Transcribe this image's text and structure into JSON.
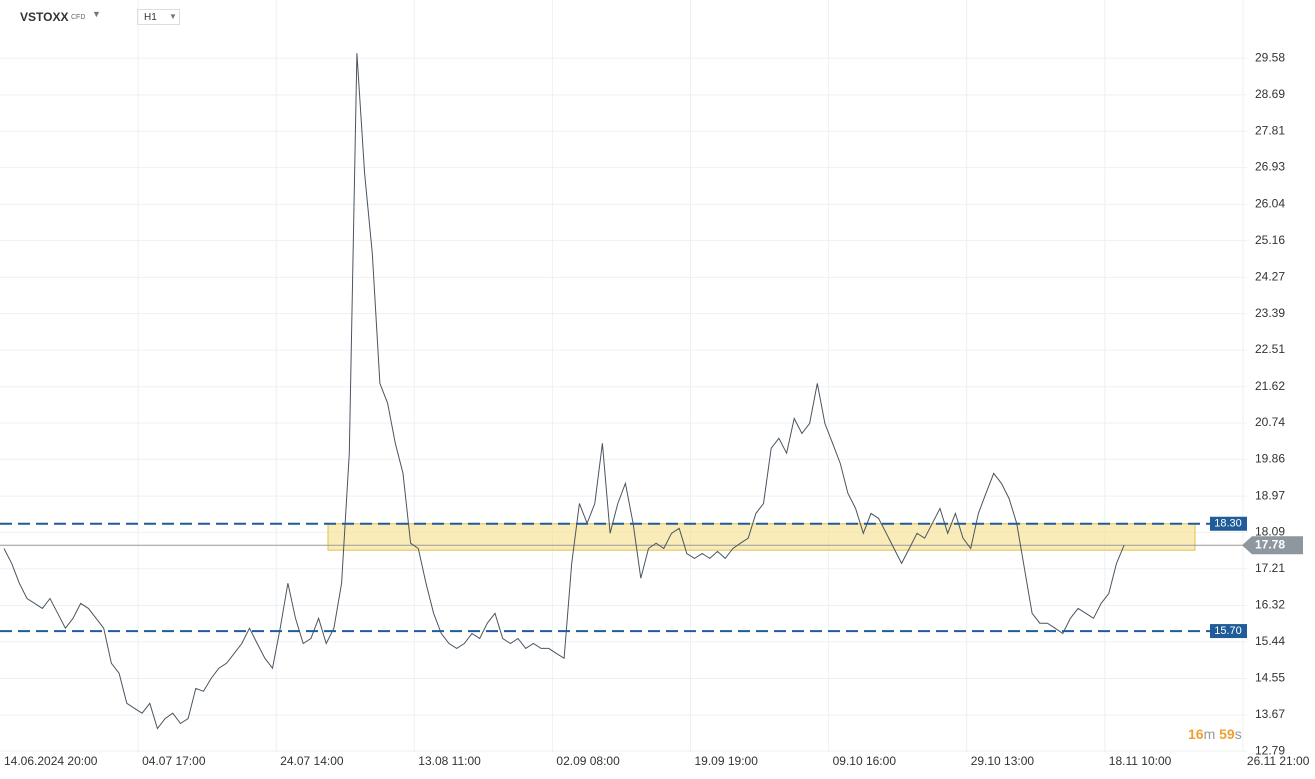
{
  "header": {
    "symbol": "VSTOXX",
    "instrument": "CFD",
    "timeframe": "H1"
  },
  "timer": [
    "16",
    "m",
    "59",
    "s"
  ],
  "chart_data": {
    "type": "line",
    "color": "#4a5560",
    "categories": [
      "14.06.2024 20:00",
      null,
      null,
      null,
      null,
      null,
      null,
      null,
      null,
      null,
      null,
      null,
      null,
      null,
      null,
      null,
      null,
      null,
      "04.07 17:00",
      null,
      null,
      null,
      null,
      null,
      null,
      null,
      null,
      null,
      null,
      null,
      null,
      null,
      null,
      null,
      null,
      null,
      "24.07 14:00",
      null,
      null,
      null,
      null,
      null,
      null,
      null,
      null,
      null,
      null,
      null,
      null,
      null,
      null,
      null,
      null,
      null,
      "13.08 11:00",
      null,
      null,
      null,
      null,
      null,
      null,
      null,
      null,
      null,
      null,
      null,
      null,
      null,
      null,
      null,
      null,
      null,
      "02.09 08:00",
      null,
      null,
      null,
      null,
      null,
      null,
      null,
      null,
      null,
      null,
      null,
      null,
      null,
      null,
      null,
      null,
      null,
      "19.09 19:00",
      null,
      null,
      null,
      null,
      null,
      null,
      null,
      null,
      null,
      null,
      null,
      null,
      null,
      null,
      null,
      null,
      null,
      "09.10 16:00",
      null,
      null,
      null,
      null,
      null,
      null,
      null,
      null,
      null,
      null,
      null,
      null,
      null,
      null,
      null,
      null,
      null,
      "29.10 13:00",
      null,
      null,
      null,
      null,
      null,
      null,
      null,
      null,
      null,
      null,
      null,
      null,
      null,
      null,
      null,
      null,
      null,
      "18.11 10:00",
      null,
      null,
      null,
      null,
      null,
      null,
      null,
      null,
      null,
      null,
      null,
      null,
      null,
      null,
      null,
      null,
      null,
      "26.11 21:00"
    ],
    "values": [
      17.7,
      17.34,
      16.86,
      16.49,
      16.37,
      16.25,
      16.49,
      16.13,
      15.77,
      16.01,
      16.37,
      16.25,
      16.01,
      15.77,
      14.92,
      14.68,
      13.95,
      13.83,
      13.71,
      13.95,
      13.34,
      13.58,
      13.71,
      13.46,
      13.58,
      14.31,
      14.24,
      14.55,
      14.8,
      14.92,
      15.16,
      15.4,
      15.77,
      15.4,
      15.04,
      14.8,
      15.77,
      16.86,
      16.01,
      15.4,
      15.52,
      16.01,
      15.4,
      15.77,
      16.86,
      20.01,
      29.7,
      26.79,
      24.85,
      21.7,
      21.22,
      20.25,
      19.52,
      17.83,
      17.7,
      16.86,
      16.13,
      15.64,
      15.4,
      15.28,
      15.4,
      15.64,
      15.52,
      15.89,
      16.13,
      15.52,
      15.4,
      15.52,
      15.28,
      15.4,
      15.28,
      15.28,
      15.16,
      15.04,
      17.34,
      18.79,
      18.31,
      18.79,
      20.25,
      18.07,
      18.79,
      19.28,
      18.31,
      16.98,
      17.7,
      17.83,
      17.7,
      18.07,
      18.19,
      17.58,
      17.46,
      17.58,
      17.46,
      17.63,
      17.46,
      17.7,
      17.83,
      17.95,
      18.55,
      18.79,
      20.13,
      20.37,
      20.01,
      20.85,
      20.49,
      20.73,
      21.7,
      20.73,
      20.25,
      19.76,
      19.04,
      18.67,
      18.07,
      18.55,
      18.43,
      18.07,
      17.7,
      17.34,
      17.7,
      18.07,
      17.95,
      18.31,
      18.67,
      18.07,
      18.55,
      17.95,
      17.7,
      18.55,
      19.04,
      19.52,
      19.28,
      18.91,
      18.31,
      17.22,
      16.13,
      15.89,
      15.89,
      15.77,
      15.64,
      16.01,
      16.25,
      16.13,
      16.01,
      16.37,
      16.61,
      17.34,
      17.78,
      null,
      null,
      null,
      null,
      null,
      null,
      null,
      null,
      null,
      null,
      null,
      null,
      null,
      null,
      null,
      null
    ],
    "ylim": [
      12.77,
      30.99
    ],
    "yticks": [
      12.79,
      13.67,
      14.55,
      15.44,
      16.32,
      17.21,
      18.09,
      18.97,
      19.86,
      20.74,
      21.62,
      22.51,
      23.39,
      24.27,
      25.16,
      26.04,
      26.93,
      27.81,
      28.69,
      29.58
    ],
    "grid": true,
    "levels": [
      {
        "value": 18.3,
        "label": "18.30"
      },
      {
        "value": 15.7,
        "label": "15.70"
      }
    ],
    "level_color": "#1f5c99",
    "zone": [
      17.66,
      18.3
    ],
    "zone_color": "#f7e08a",
    "current_price": 17.78
  }
}
